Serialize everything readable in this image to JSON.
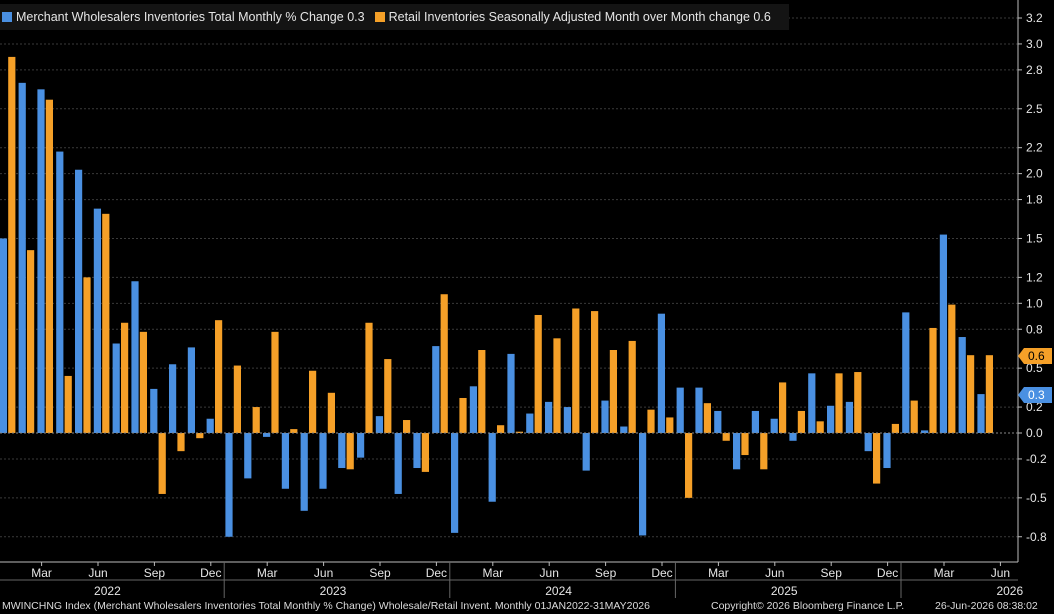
{
  "legend": [
    {
      "label": "Merchant Wholesalers Inventories Total Monthly % Change",
      "last": "0.3",
      "color": "#4a90e2"
    },
    {
      "label": "Retail Inventories Seasonally Adjusted Month over Month change",
      "last": "0.6",
      "color": "#f5a028"
    }
  ],
  "footer": {
    "left": "MWINCHNG Index (Merchant Wholesalers Inventories Total Monthly % Change) Wholesale/Retail Invent. Monthly 01JAN2022-31MAY2026",
    "copyright": "Copyright© 2026 Bloomberg Finance L.P.",
    "timestamp": "26-Jun-2026 08:38:02"
  },
  "chart_data": {
    "type": "bar",
    "ylim": [
      -1.0,
      3.2
    ],
    "yticks": [
      "3.2",
      "3.0",
      "2.8",
      "2.5",
      "2.2",
      "2.0",
      "1.8",
      "1.5",
      "1.2",
      "1.0",
      "0.8",
      "0.5",
      "0.2",
      "0.0",
      "-0.2",
      "-0.5",
      "-0.8"
    ],
    "month_labels": [
      "Mar",
      "Jun",
      "Sep",
      "Dec",
      "Mar",
      "Jun",
      "Sep",
      "Dec",
      "Mar",
      "Jun",
      "Sep",
      "Dec",
      "Mar",
      "Jun",
      "Sep",
      "Dec",
      "Mar",
      "Jun"
    ],
    "year_labels": [
      "2022",
      "2023",
      "2024",
      "2025",
      "2026"
    ],
    "series": [
      {
        "name": "Merchant Wholesalers Inventories Total Monthly % Change",
        "color": "#4a90e2",
        "values": [
          1.5,
          2.7,
          2.65,
          2.17,
          2.03,
          1.73,
          0.69,
          1.17,
          0.34,
          0.53,
          0.66,
          0.11,
          -0.8,
          -0.35,
          -0.03,
          -0.43,
          -0.6,
          -0.43,
          -0.27,
          -0.19,
          0.13,
          -0.47,
          -0.27,
          0.67,
          -0.77,
          0.36,
          -0.53,
          0.61,
          0.15,
          0.24,
          0.2,
          -0.29,
          0.25,
          0.05,
          -0.79,
          0.92,
          0.35,
          0.35,
          0.17,
          -0.28,
          0.17,
          0.11,
          -0.06,
          0.46,
          0.21,
          0.24,
          -0.14,
          -0.27,
          0.93,
          0.02,
          1.53,
          0.74,
          0.3
        ]
      },
      {
        "name": "Retail Inventories Seasonally Adjusted Month over Month change",
        "color": "#f5a028",
        "values": [
          2.9,
          1.41,
          2.57,
          0.44,
          1.2,
          1.69,
          0.85,
          0.78,
          -0.47,
          -0.14,
          -0.04,
          0.87,
          0.52,
          0.2,
          0.78,
          0.03,
          0.48,
          0.31,
          -0.28,
          0.85,
          0.57,
          0.1,
          -0.3,
          1.07,
          0.27,
          0.64,
          0.06,
          0.01,
          0.91,
          0.73,
          0.96,
          0.94,
          0.64,
          0.71,
          0.18,
          0.12,
          -0.5,
          0.23,
          -0.06,
          -0.17,
          -0.28,
          0.39,
          0.17,
          0.09,
          0.46,
          0.47,
          -0.39,
          0.07,
          0.25,
          0.81,
          0.99,
          0.6,
          0.6
        ]
      }
    ]
  }
}
